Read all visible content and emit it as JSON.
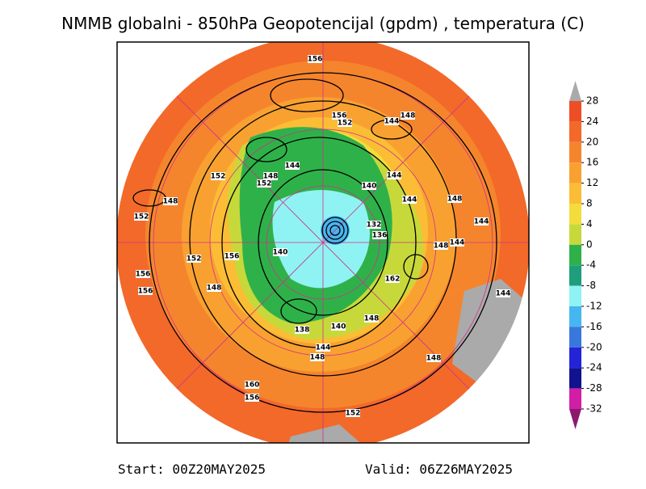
{
  "header": {
    "title": "NMMB globalni - 850hPa Geopotencijal (gpdm) , temperatura (C)"
  },
  "colorbar": {
    "ticks": [
      28,
      24,
      20,
      16,
      12,
      8,
      4,
      0,
      -4,
      -8,
      -12,
      -16,
      -20,
      -24,
      -28,
      -32
    ],
    "colors": [
      "#ee4e26",
      "#f2692a",
      "#f5852d",
      "#f8a131",
      "#fbbd35",
      "#f3dc3c",
      "#c7d93a",
      "#2fb14a",
      "#1f9e7c",
      "#8ff3f3",
      "#46b6f0",
      "#3878dc",
      "#2323d8",
      "#12128e",
      "#d21ea6"
    ],
    "above_color": "#aaaaaa",
    "below_color": "#8b1a6e"
  },
  "contour_labels": [
    156,
    156,
    152,
    148,
    144,
    152,
    148,
    152,
    144,
    140,
    144,
    144,
    148,
    148,
    152,
    132,
    136,
    144,
    148,
    144,
    140,
    156,
    152,
    162,
    156,
    156,
    148,
    144,
    138,
    140,
    148,
    144,
    148,
    148,
    160,
    156,
    152
  ],
  "footer": {
    "start": "Start: 00Z20MAY2025",
    "valid": "Valid: 06Z26MAY2025"
  }
}
